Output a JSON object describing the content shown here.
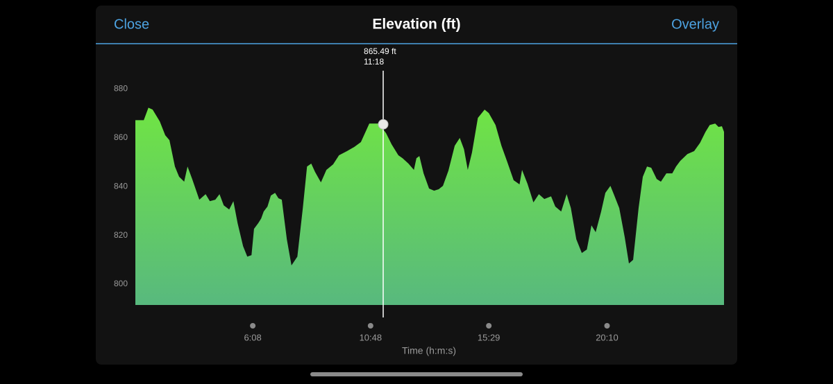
{
  "header": {
    "left_button": "Close",
    "right_button": "Overlay"
  },
  "chart_data": {
    "type": "area",
    "title": "Elevation (ft)",
    "x_label": "Time (h:m:s)",
    "colors": [
      "#70e444",
      "#58b97e"
    ],
    "xlim": [
      89,
      1488
    ],
    "xticks": [
      {
        "value": 368,
        "label": "6:08"
      },
      {
        "value": 648,
        "label": "10:48"
      },
      {
        "value": 929,
        "label": "15:29"
      },
      {
        "value": 1210,
        "label": "20:10"
      }
    ],
    "ylim": [
      791.5,
      890
    ],
    "yticks": [
      800,
      820,
      840,
      860,
      880
    ],
    "grid": false,
    "cursor": {
      "x": 678,
      "x_label": "11:18",
      "value": 865.49,
      "value_label": "865.49 ft"
    },
    "x": [
      89,
      109,
      120,
      130,
      147,
      160,
      170,
      183,
      193,
      205,
      213,
      224,
      241,
      256,
      266,
      279,
      289,
      299,
      312,
      322,
      332,
      345,
      355,
      365,
      371,
      381,
      388,
      394,
      403,
      411,
      421,
      429,
      437,
      449,
      460,
      474,
      487,
      497,
      507,
      516,
      530,
      543,
      559,
      573,
      592,
      609,
      625,
      645,
      668,
      685,
      698,
      714,
      724,
      738,
      751,
      757,
      764,
      774,
      787,
      799,
      810,
      820,
      833,
      848,
      860,
      870,
      879,
      889,
      903,
      919,
      929,
      945,
      959,
      972,
      988,
      1002,
      1008,
      1021,
      1035,
      1048,
      1061,
      1077,
      1087,
      1101,
      1114,
      1124,
      1137,
      1150,
      1162,
      1173,
      1183,
      1196,
      1206,
      1218,
      1226,
      1239,
      1252,
      1262,
      1272,
      1285,
      1295,
      1305,
      1315,
      1328,
      1338,
      1351,
      1365,
      1374,
      1384,
      1401,
      1417,
      1431,
      1444,
      1454,
      1467,
      1475,
      1483,
      1488
    ],
    "values": [
      867.2,
      867.2,
      872.3,
      871.5,
      866.7,
      861.0,
      859.0,
      848.2,
      844.0,
      842.0,
      848.2,
      843.1,
      834.6,
      836.9,
      834.0,
      834.6,
      836.9,
      832.3,
      830.6,
      834.0,
      825.0,
      815.6,
      811.3,
      811.9,
      822.7,
      825.0,
      826.9,
      829.8,
      831.8,
      836.3,
      837.4,
      835.2,
      834.6,
      818.4,
      807.7,
      811.3,
      831.2,
      848.2,
      849.4,
      846.0,
      841.7,
      846.8,
      849.1,
      852.8,
      854.5,
      856.2,
      858.2,
      865.8,
      865.8,
      861.8,
      857.3,
      852.8,
      851.6,
      849.4,
      846.8,
      851.6,
      852.5,
      845.4,
      839.2,
      838.3,
      838.9,
      840.3,
      846.5,
      856.7,
      859.9,
      855.3,
      846.8,
      853.9,
      868.1,
      871.5,
      870.1,
      865.2,
      856.7,
      850.5,
      842.6,
      840.9,
      846.8,
      841.1,
      833.5,
      836.9,
      834.9,
      836.0,
      831.8,
      829.8,
      836.9,
      831.2,
      818.4,
      812.8,
      814.2,
      824.1,
      821.3,
      829.8,
      837.4,
      840.3,
      836.9,
      831.2,
      819.3,
      808.5,
      810.0,
      831.2,
      844.0,
      848.2,
      847.7,
      843.1,
      842.0,
      845.4,
      845.4,
      848.2,
      850.5,
      853.3,
      854.5,
      857.9,
      862.4,
      865.2,
      865.8,
      864.4,
      864.7,
      862.4
    ]
  }
}
